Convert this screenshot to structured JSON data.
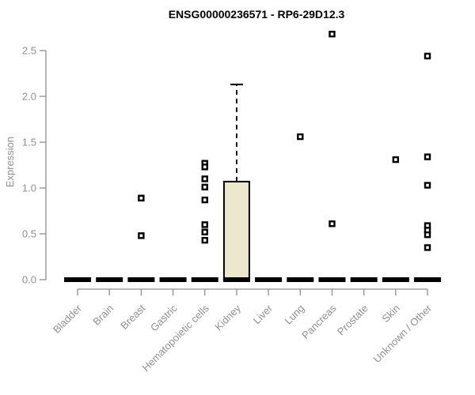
{
  "chart_data": {
    "type": "boxplot",
    "title": "ENSG00000236571 - RP6-29D12.3",
    "ylabel": "Expression",
    "xlabel": "",
    "ylim": [
      0,
      2.5
    ],
    "yticks": [
      0.0,
      0.5,
      1.0,
      1.5,
      2.0,
      2.5
    ],
    "grid": "off",
    "legend": "none",
    "colors": {
      "axis": "#8f8f8f",
      "box_fill": "#ece7cd",
      "box_stroke": "#000000",
      "title": "#000000",
      "background": "#ffffff"
    },
    "categories": [
      "Bladder",
      "Brain",
      "Breast",
      "Gastric",
      "Hematopoietic cells",
      "Kidney",
      "Liver",
      "Lung",
      "Pancreas",
      "Prostate",
      "Skin",
      "Unknown / Other"
    ],
    "boxes": [
      {
        "category": "Bladder",
        "q1": 0,
        "median": 0,
        "q3": 0,
        "whisker_low": 0,
        "whisker_high": 0,
        "outliers": []
      },
      {
        "category": "Brain",
        "q1": 0,
        "median": 0,
        "q3": 0,
        "whisker_low": 0,
        "whisker_high": 0,
        "outliers": []
      },
      {
        "category": "Breast",
        "q1": 0,
        "median": 0,
        "q3": 0,
        "whisker_low": 0,
        "whisker_high": 0,
        "outliers": [
          0.89,
          0.48
        ]
      },
      {
        "category": "Gastric",
        "q1": 0,
        "median": 0,
        "q3": 0,
        "whisker_low": 0,
        "whisker_high": 0,
        "outliers": []
      },
      {
        "category": "Hematopoietic cells",
        "q1": 0,
        "median": 0,
        "q3": 0,
        "whisker_low": 0,
        "whisker_high": 0,
        "outliers": [
          1.27,
          1.23,
          1.1,
          1.01,
          0.87,
          0.6,
          0.52,
          0.43
        ]
      },
      {
        "category": "Kidney",
        "q1": 0,
        "median": 0,
        "q3": 1.07,
        "whisker_low": 0,
        "whisker_high": 2.13,
        "outliers": []
      },
      {
        "category": "Liver",
        "q1": 0,
        "median": 0,
        "q3": 0,
        "whisker_low": 0,
        "whisker_high": 0,
        "outliers": []
      },
      {
        "category": "Lung",
        "q1": 0,
        "median": 0,
        "q3": 0,
        "whisker_low": 0,
        "whisker_high": 0,
        "outliers": [
          1.56
        ]
      },
      {
        "category": "Pancreas",
        "q1": 0,
        "median": 0,
        "q3": 0,
        "whisker_low": 0,
        "whisker_high": 0,
        "outliers": [
          2.68,
          0.61
        ]
      },
      {
        "category": "Prostate",
        "q1": 0,
        "median": 0,
        "q3": 0,
        "whisker_low": 0,
        "whisker_high": 0,
        "outliers": []
      },
      {
        "category": "Skin",
        "q1": 0,
        "median": 0,
        "q3": 0,
        "whisker_low": 0,
        "whisker_high": 0,
        "outliers": [
          1.31
        ]
      },
      {
        "category": "Unknown / Other",
        "q1": 0,
        "median": 0,
        "q3": 0,
        "whisker_low": 0,
        "whisker_high": 0,
        "outliers": [
          2.44,
          1.34,
          1.03,
          0.59,
          0.54,
          0.49,
          0.35
        ]
      }
    ]
  }
}
